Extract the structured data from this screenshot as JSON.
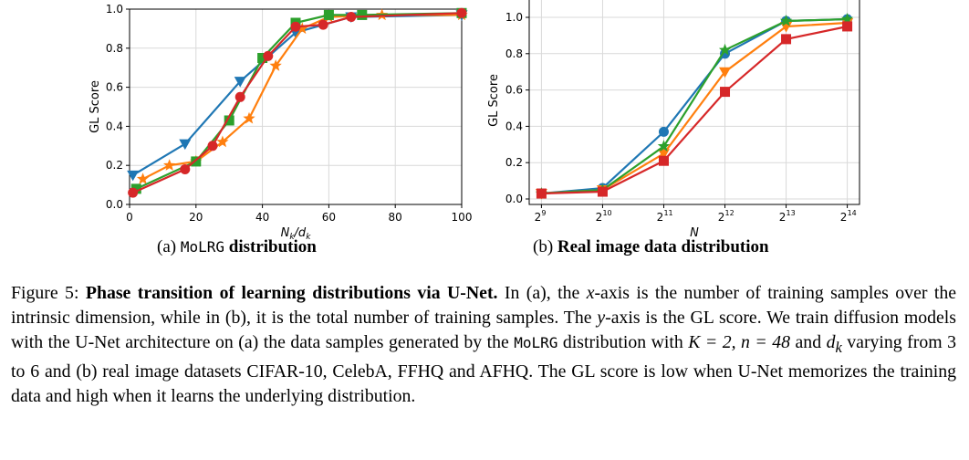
{
  "chart_data": [
    {
      "type": "line",
      "xlabel": "N_k/d_k",
      "ylabel": "GL Score",
      "xlim": [
        0,
        100
      ],
      "ylim": [
        0,
        1.0
      ],
      "x_ticks": [
        "0",
        "20",
        "40",
        "60",
        "80",
        "100"
      ],
      "y_ticks": [
        "0.0",
        "0.2",
        "0.4",
        "0.6",
        "0.8",
        "1.0"
      ],
      "grid": true,
      "series": [
        {
          "color": "#1f77b4",
          "marker": "triangle-down",
          "x": [
            1,
            16.7,
            33.3,
            50,
            66.7,
            100
          ],
          "y": [
            0.15,
            0.31,
            0.63,
            0.88,
            0.96,
            0.97
          ]
        },
        {
          "color": "#ff7f0e",
          "marker": "star",
          "x": [
            4,
            12,
            20,
            28,
            36,
            44,
            52,
            60,
            76,
            100
          ],
          "y": [
            0.13,
            0.2,
            0.22,
            0.32,
            0.44,
            0.71,
            0.9,
            0.96,
            0.97,
            0.97
          ]
        },
        {
          "color": "#2ca02c",
          "marker": "square",
          "x": [
            2,
            20,
            30,
            40,
            50,
            60,
            70,
            100
          ],
          "y": [
            0.08,
            0.22,
            0.43,
            0.75,
            0.93,
            0.97,
            0.97,
            0.98
          ]
        },
        {
          "color": "#d62728",
          "marker": "circle",
          "x": [
            1,
            16.7,
            25,
            33.3,
            41.7,
            50,
            58.3,
            66.7,
            100
          ],
          "y": [
            0.06,
            0.18,
            0.3,
            0.55,
            0.76,
            0.91,
            0.92,
            0.96,
            0.98
          ]
        }
      ]
    },
    {
      "type": "line",
      "xlabel": "N",
      "ylabel": "GL Score",
      "ylim": [
        0,
        1.0
      ],
      "x_scale": "log2",
      "x": [
        9,
        10,
        11,
        12,
        13,
        14
      ],
      "x_ticks": [
        {
          "base": "2",
          "exp": "9"
        },
        {
          "base": "2",
          "exp": "10"
        },
        {
          "base": "2",
          "exp": "11"
        },
        {
          "base": "2",
          "exp": "12"
        },
        {
          "base": "2",
          "exp": "13"
        },
        {
          "base": "2",
          "exp": "14"
        }
      ],
      "y_ticks": [
        "0.0",
        "0.2",
        "0.4",
        "0.6",
        "0.8",
        "1.0"
      ],
      "grid": true,
      "series": [
        {
          "color": "#1f77b4",
          "marker": "circle",
          "y": [
            0.03,
            0.06,
            0.37,
            0.8,
            0.98,
            0.99
          ]
        },
        {
          "color": "#ff7f0e",
          "marker": "triangle-down",
          "y": [
            0.03,
            0.05,
            0.25,
            0.7,
            0.95,
            0.97
          ]
        },
        {
          "color": "#2ca02c",
          "marker": "star",
          "y": [
            0.03,
            0.05,
            0.29,
            0.82,
            0.98,
            0.99
          ]
        },
        {
          "color": "#d62728",
          "marker": "square",
          "y": [
            0.03,
            0.04,
            0.21,
            0.59,
            0.88,
            0.95
          ]
        }
      ]
    }
  ],
  "subcaptions": {
    "a": {
      "label": "(a)",
      "mono": "MoLRG",
      "bold": "distribution"
    },
    "b": {
      "label": "(b)",
      "bold": "Real image data distribution"
    }
  },
  "caption": {
    "figure_label": "Figure 5:",
    "bold": "Phase transition of learning distributions via U-Net.",
    "t1": " In (a), the ",
    "x_sym": "x",
    "t2": "-axis is the number of training samples over the intrinsic dimension, while in (b), it is the total number of training samples. The ",
    "y_sym": "y",
    "t3": "-axis is the GL score. We train diffusion models with the U-Net architecture on (a) the data samples generated by the ",
    "mono": "MoLRG",
    "t4": " distribution with ",
    "math1": "K = 2, n = 48",
    "t5": " and ",
    "math2": "d",
    "math2_sub": "k",
    "t6": " varying from 3 to 6 and (b) real image datasets CIFAR-10, CelebA, FFHQ and AFHQ. The GL score is low when U-Net memorizes the training data and high when it learns the underlying distribution."
  }
}
